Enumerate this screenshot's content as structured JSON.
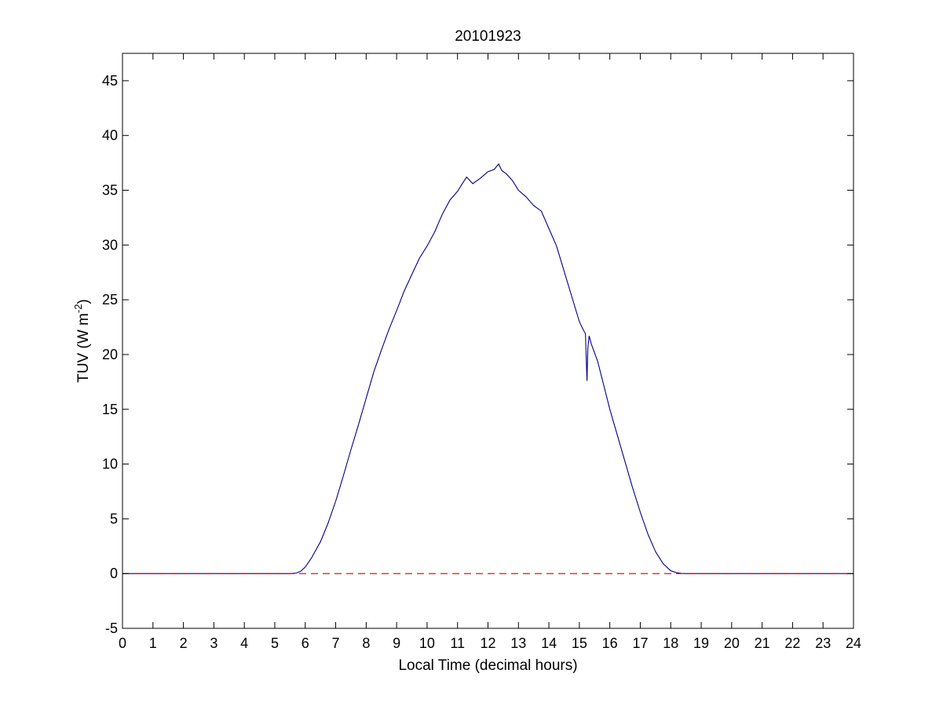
{
  "chart_data": {
    "type": "line",
    "title": "20101923",
    "xlabel": "Local Time (decimal hours)",
    "ylabel_main": "TUV (W m",
    "ylabel_sup": "-2",
    "ylabel_close": ")",
    "xlim": [
      0,
      24
    ],
    "ylim": [
      -5,
      47.5
    ],
    "xticks": [
      0,
      1,
      2,
      3,
      4,
      5,
      6,
      7,
      8,
      9,
      10,
      11,
      12,
      13,
      14,
      15,
      16,
      17,
      18,
      19,
      20,
      21,
      22,
      23,
      24
    ],
    "xtick_labels": [
      "0",
      "1",
      "2",
      "3",
      "4",
      "5",
      "6",
      "7",
      "8",
      "9",
      "10",
      "11",
      "12",
      "13",
      "14",
      "15",
      "16",
      "17",
      "18",
      "19",
      "20",
      "21",
      "22",
      "23",
      "24"
    ],
    "yticks": [
      -5,
      0,
      5,
      10,
      15,
      20,
      25,
      30,
      35,
      40,
      45
    ],
    "ytick_labels": [
      "-5",
      "0",
      "5",
      "10",
      "15",
      "20",
      "25",
      "30",
      "35",
      "40",
      "45"
    ],
    "grid": false,
    "colors": {
      "series": "#00008b",
      "reference": "#cc0000",
      "axes": "#000000"
    },
    "series": [
      {
        "style": "solid",
        "x": [
          0,
          5.5,
          5.7,
          5.85,
          6.0,
          6.2,
          6.5,
          6.75,
          7.0,
          7.25,
          7.5,
          7.75,
          8.0,
          8.25,
          8.5,
          8.75,
          9.0,
          9.25,
          9.5,
          9.75,
          10.0,
          10.25,
          10.5,
          10.75,
          11.0,
          11.2,
          11.3,
          11.5,
          11.75,
          12.0,
          12.2,
          12.35,
          12.45,
          12.6,
          12.8,
          13.0,
          13.25,
          13.5,
          13.75,
          14.0,
          14.25,
          14.5,
          14.75,
          15.0,
          15.1,
          15.2,
          15.25,
          15.28,
          15.32,
          15.4,
          15.6,
          15.8,
          16.0,
          16.25,
          16.5,
          16.75,
          17.0,
          17.25,
          17.5,
          17.75,
          18.0,
          18.2,
          18.35,
          18.5,
          19.0,
          24
        ],
        "y": [
          0,
          0,
          0.05,
          0.2,
          0.6,
          1.4,
          2.9,
          4.6,
          6.6,
          8.9,
          11.3,
          13.6,
          16.0,
          18.4,
          20.4,
          22.3,
          24.0,
          25.8,
          27.3,
          28.8,
          29.9,
          31.2,
          32.8,
          34.1,
          34.9,
          35.8,
          36.2,
          35.6,
          36.1,
          36.7,
          36.9,
          37.4,
          36.8,
          36.5,
          35.9,
          35.0,
          34.4,
          33.6,
          33.1,
          31.5,
          29.9,
          27.6,
          25.3,
          23.0,
          22.4,
          21.9,
          17.6,
          20.6,
          21.7,
          20.9,
          19.4,
          17.2,
          15.0,
          12.6,
          10.2,
          7.8,
          5.6,
          3.6,
          2.0,
          0.9,
          0.25,
          0.08,
          0.02,
          0,
          0,
          0
        ]
      },
      {
        "style": "dashed",
        "x": [
          0,
          24
        ],
        "y": [
          0,
          0
        ]
      }
    ]
  }
}
